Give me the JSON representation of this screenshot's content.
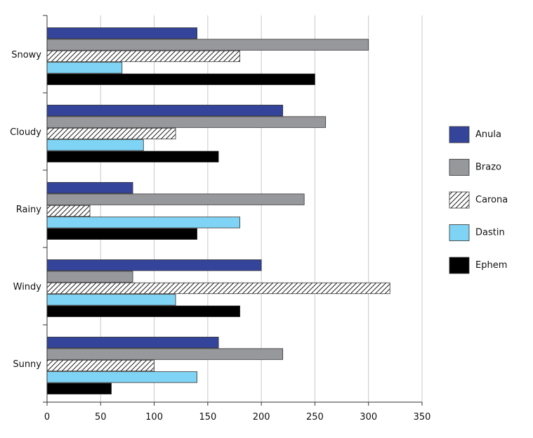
{
  "chart_data": {
    "type": "bar",
    "orientation": "horizontal",
    "title": "",
    "xlabel": "",
    "ylabel": "",
    "xlim": [
      0,
      350
    ],
    "xticks": [
      0,
      50,
      100,
      150,
      200,
      250,
      300,
      350
    ],
    "grid": "vertical",
    "legend_position": "right",
    "categories": [
      "Snowy",
      "Cloudy",
      "Rainy",
      "Windy",
      "Sunny"
    ],
    "series": [
      {
        "name": "Anula",
        "values": [
          140,
          220,
          80,
          200,
          160
        ],
        "color": "#34449a",
        "pattern": "solid"
      },
      {
        "name": "Brazo",
        "values": [
          300,
          260,
          240,
          80,
          220
        ],
        "color": "#97989c",
        "pattern": "solid"
      },
      {
        "name": "Carona",
        "values": [
          180,
          120,
          40,
          320,
          100
        ],
        "color": "#ffffff",
        "pattern": "hatch"
      },
      {
        "name": "Dastin",
        "values": [
          70,
          90,
          180,
          120,
          140
        ],
        "color": "#7fd3f4",
        "pattern": "solid"
      },
      {
        "name": "Ephem",
        "values": [
          250,
          160,
          140,
          180,
          60
        ],
        "color": "#000000",
        "pattern": "solid"
      }
    ]
  }
}
